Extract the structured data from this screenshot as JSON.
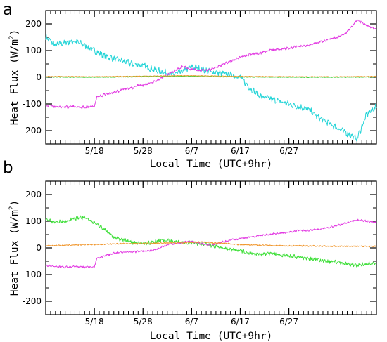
{
  "chart_data": [
    {
      "panel": "a",
      "type": "line",
      "xlabel": "Local Time (UTC+9hr)",
      "ylabel_main": "Heat Flux (W/m",
      "ylabel_sup": "2",
      "ylabel_end": ")",
      "ylim": [
        -250,
        250
      ],
      "yticks": [
        200,
        100,
        0,
        -100,
        -200
      ],
      "xlim": [
        0,
        68
      ],
      "xticks": [
        {
          "pos": 10,
          "label": "5/18"
        },
        {
          "pos": 20,
          "label": "5/28"
        },
        {
          "pos": 30,
          "label": "6/7"
        },
        {
          "pos": 40,
          "label": "6/17"
        },
        {
          "pos": 50,
          "label": "6/27"
        }
      ],
      "grid": false,
      "series": [
        {
          "color": "#27d5d8",
          "amp": 10,
          "x": [
            0,
            2,
            4,
            6,
            8,
            10,
            12,
            14,
            16,
            18,
            20,
            22,
            24,
            26,
            28,
            30,
            32,
            34,
            36,
            38,
            40,
            42,
            44,
            46,
            48,
            50,
            52,
            54,
            56,
            58,
            60,
            62,
            64,
            66,
            68
          ],
          "y": [
            150,
            120,
            130,
            135,
            120,
            100,
            80,
            70,
            60,
            50,
            45,
            30,
            20,
            10,
            20,
            40,
            30,
            20,
            15,
            10,
            0,
            -40,
            -70,
            -80,
            -90,
            -100,
            -110,
            -120,
            -150,
            -170,
            -190,
            -210,
            -230,
            -140,
            -110
          ]
        },
        {
          "color": "#e23ae2",
          "amp": 4,
          "x": [
            0,
            2,
            4,
            6,
            8,
            10,
            10.5,
            12,
            14,
            16,
            18,
            19,
            20,
            22,
            24,
            26,
            28,
            30,
            32,
            34,
            36,
            38,
            40,
            42,
            44,
            46,
            48,
            50,
            52,
            54,
            56,
            58,
            60,
            62,
            64,
            66,
            68
          ],
          "y": [
            -105,
            -110,
            -112,
            -110,
            -112,
            -108,
            -75,
            -65,
            -58,
            -45,
            -40,
            -30,
            -30,
            -20,
            0,
            20,
            40,
            30,
            25,
            30,
            45,
            60,
            75,
            85,
            90,
            100,
            105,
            110,
            115,
            120,
            130,
            140,
            150,
            170,
            215,
            195,
            180
          ]
        },
        {
          "color": "#e89a2a",
          "amp": 1,
          "x": [
            0,
            10,
            20,
            30,
            40,
            50,
            60,
            68
          ],
          "y": [
            3,
            2,
            4,
            6,
            3,
            2,
            2,
            3
          ]
        },
        {
          "color": "#3fcf3a",
          "amp": 1,
          "x": [
            0,
            10,
            20,
            30,
            40,
            50,
            60,
            68
          ],
          "y": [
            1,
            0,
            2,
            3,
            1,
            0,
            0,
            1
          ]
        }
      ]
    },
    {
      "panel": "b",
      "type": "line",
      "xlabel": "Local Time (UTC+9hr)",
      "ylabel_main": "Heat Flux (W/m",
      "ylabel_sup": "2",
      "ylabel_end": ")",
      "ylim": [
        -250,
        250
      ],
      "yticks": [
        200,
        100,
        0,
        -100,
        -200
      ],
      "xlim": [
        0,
        68
      ],
      "xticks": [
        {
          "pos": 10,
          "label": "5/18"
        },
        {
          "pos": 20,
          "label": "5/28"
        },
        {
          "pos": 30,
          "label": "6/7"
        },
        {
          "pos": 40,
          "label": "6/17"
        },
        {
          "pos": 50,
          "label": "6/27"
        }
      ],
      "grid": false,
      "series": [
        {
          "color": "#3fdf3a",
          "amp": 6,
          "x": [
            0,
            2,
            4,
            6,
            8,
            10,
            12,
            14,
            16,
            18,
            20,
            22,
            24,
            26,
            28,
            30,
            32,
            34,
            36,
            38,
            40,
            42,
            44,
            46,
            48,
            50,
            52,
            54,
            56,
            58,
            60,
            62,
            64,
            66,
            68
          ],
          "y": [
            110,
            95,
            100,
            110,
            115,
            95,
            70,
            40,
            30,
            20,
            15,
            20,
            30,
            25,
            20,
            20,
            15,
            10,
            0,
            -5,
            -10,
            -20,
            -25,
            -20,
            -25,
            -30,
            -35,
            -40,
            -45,
            -50,
            -55,
            -60,
            -65,
            -60,
            -55
          ]
        },
        {
          "color": "#e23ae2",
          "amp": 3,
          "x": [
            0,
            2,
            4,
            6,
            8,
            10,
            10.5,
            12,
            14,
            16,
            18,
            20,
            22,
            24,
            26,
            28,
            30,
            32,
            34,
            36,
            38,
            40,
            42,
            44,
            46,
            48,
            50,
            52,
            54,
            56,
            58,
            60,
            62,
            64,
            66,
            68
          ],
          "y": [
            -65,
            -70,
            -72,
            -70,
            -72,
            -70,
            -40,
            -30,
            -20,
            -15,
            -15,
            -12,
            -10,
            5,
            15,
            20,
            25,
            15,
            10,
            20,
            30,
            35,
            40,
            45,
            50,
            55,
            60,
            65,
            65,
            70,
            75,
            85,
            95,
            105,
            100,
            95
          ]
        },
        {
          "color": "#f0952a",
          "amp": 2,
          "x": [
            0,
            4,
            8,
            12,
            16,
            20,
            24,
            28,
            32,
            36,
            40,
            44,
            48,
            52,
            56,
            60,
            64,
            68
          ],
          "y": [
            8,
            10,
            12,
            14,
            16,
            16,
            18,
            20,
            22,
            18,
            12,
            10,
            8,
            8,
            7,
            6,
            6,
            6
          ]
        }
      ]
    }
  ]
}
